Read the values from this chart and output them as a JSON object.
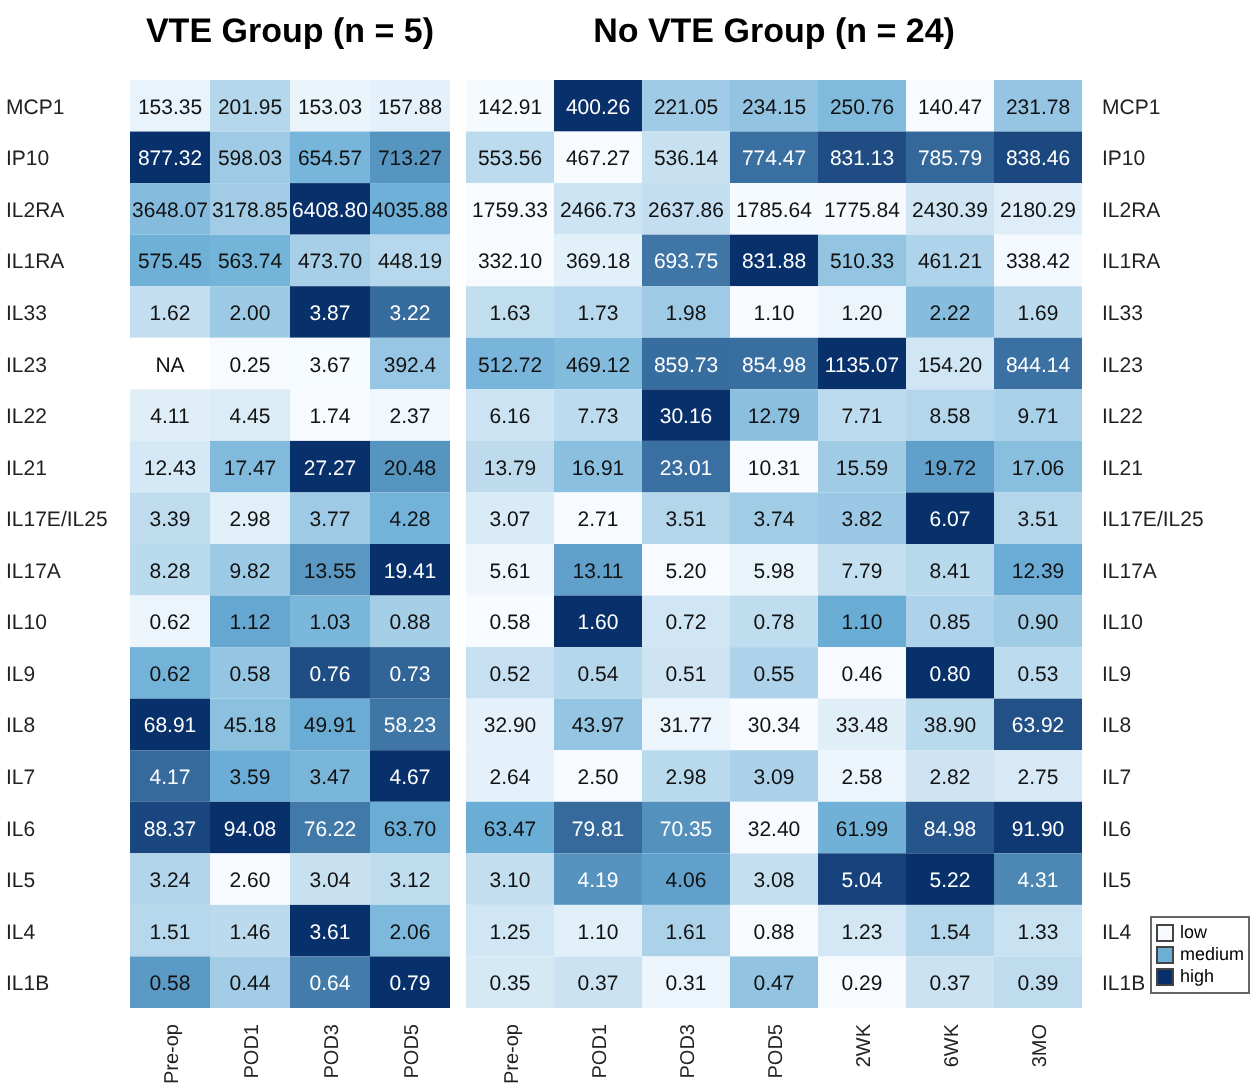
{
  "chart_data": [
    {
      "type": "heatmap",
      "title": "VTE Group (n = 5)",
      "categories": [
        "Pre-op",
        "POD1",
        "POD3",
        "POD5"
      ],
      "y_categories": [
        "MCP1",
        "IP10",
        "IL2RA",
        "IL1RA",
        "IL33",
        "IL23",
        "IL22",
        "IL21",
        "IL17E/IL25",
        "IL17A",
        "IL10",
        "IL9",
        "IL8",
        "IL7",
        "IL6",
        "IL5",
        "IL4",
        "IL1B"
      ],
      "cells": [
        [
          153.35,
          201.95,
          153.03,
          157.88
        ],
        [
          877.32,
          598.03,
          654.57,
          713.27
        ],
        [
          3648.07,
          3178.85,
          6408.8,
          4035.88
        ],
        [
          575.45,
          563.74,
          473.7,
          448.19
        ],
        [
          1.62,
          2.0,
          3.87,
          3.22
        ],
        [
          null,
          0.25,
          3.67,
          392.4
        ],
        [
          4.11,
          4.45,
          1.74,
          2.37
        ],
        [
          12.43,
          17.47,
          27.27,
          20.48
        ],
        [
          3.39,
          2.98,
          3.77,
          4.28
        ],
        [
          8.28,
          9.82,
          13.55,
          19.41
        ],
        [
          0.62,
          1.12,
          1.03,
          0.88
        ],
        [
          0.62,
          0.58,
          0.76,
          0.73
        ],
        [
          68.91,
          45.18,
          49.91,
          58.23
        ],
        [
          4.17,
          3.59,
          3.47,
          4.67
        ],
        [
          88.37,
          94.08,
          76.22,
          63.7
        ],
        [
          3.24,
          2.6,
          3.04,
          3.12
        ],
        [
          1.51,
          1.46,
          3.61,
          2.06
        ],
        [
          0.58,
          0.44,
          0.64,
          0.79
        ]
      ],
      "cell_labels": [
        [
          "153.35",
          "201.95",
          "153.03",
          "157.88"
        ],
        [
          "877.32",
          "598.03",
          "654.57",
          "713.27"
        ],
        [
          "3648.07",
          "3178.85",
          "6408.80",
          "4035.88"
        ],
        [
          "575.45",
          "563.74",
          "473.70",
          "448.19"
        ],
        [
          "1.62",
          "2.00",
          "3.87",
          "3.22"
        ],
        [
          "NA",
          "0.25",
          "3.67",
          "392.4"
        ],
        [
          "4.11",
          "4.45",
          "1.74",
          "2.37"
        ],
        [
          "12.43",
          "17.47",
          "27.27",
          "20.48"
        ],
        [
          "3.39",
          "2.98",
          "3.77",
          "4.28"
        ],
        [
          "8.28",
          "9.82",
          "13.55",
          "19.41"
        ],
        [
          "0.62",
          "1.12",
          "1.03",
          "0.88"
        ],
        [
          "0.62",
          "0.58",
          "0.76",
          "0.73"
        ],
        [
          "68.91",
          "45.18",
          "49.91",
          "58.23"
        ],
        [
          "4.17",
          "3.59",
          "3.47",
          "4.67"
        ],
        [
          "88.37",
          "94.08",
          "76.22",
          "63.70"
        ],
        [
          "3.24",
          "2.60",
          "3.04",
          "3.12"
        ],
        [
          "1.51",
          "1.46",
          "3.61",
          "2.06"
        ],
        [
          "0.58",
          "0.44",
          "0.64",
          "0.79"
        ]
      ]
    },
    {
      "type": "heatmap",
      "title": "No VTE Group (n = 24)",
      "categories": [
        "Pre-op",
        "POD1",
        "POD3",
        "POD5",
        "2WK",
        "6WK",
        "3MO"
      ],
      "y_categories": [
        "MCP1",
        "IP10",
        "IL2RA",
        "IL1RA",
        "IL33",
        "IL23",
        "IL22",
        "IL21",
        "IL17E/IL25",
        "IL17A",
        "IL10",
        "IL9",
        "IL8",
        "IL7",
        "IL6",
        "IL5",
        "IL4",
        "IL1B"
      ],
      "cells": [
        [
          142.91,
          400.26,
          221.05,
          234.15,
          250.76,
          140.47,
          231.78
        ],
        [
          553.56,
          467.27,
          536.14,
          774.47,
          831.13,
          785.79,
          838.46
        ],
        [
          1759.33,
          2466.73,
          2637.86,
          1785.64,
          1775.84,
          2430.39,
          2180.29
        ],
        [
          332.1,
          369.18,
          693.75,
          831.88,
          510.33,
          461.21,
          338.42
        ],
        [
          1.63,
          1.73,
          1.98,
          1.1,
          1.2,
          2.22,
          1.69
        ],
        [
          512.72,
          469.12,
          859.73,
          854.98,
          1135.07,
          154.2,
          844.14
        ],
        [
          6.16,
          7.73,
          30.16,
          12.79,
          7.71,
          8.58,
          9.71
        ],
        [
          13.79,
          16.91,
          23.01,
          10.31,
          15.59,
          19.72,
          17.06
        ],
        [
          3.07,
          2.71,
          3.51,
          3.74,
          3.82,
          6.07,
          3.51
        ],
        [
          5.61,
          13.11,
          5.2,
          5.98,
          7.79,
          8.41,
          12.39
        ],
        [
          0.58,
          1.6,
          0.72,
          0.78,
          1.1,
          0.85,
          0.9
        ],
        [
          0.52,
          0.54,
          0.51,
          0.55,
          0.46,
          0.8,
          0.53
        ],
        [
          32.9,
          43.97,
          31.77,
          30.34,
          33.48,
          38.9,
          63.92
        ],
        [
          2.64,
          2.5,
          2.98,
          3.09,
          2.58,
          2.82,
          2.75
        ],
        [
          63.47,
          79.81,
          70.35,
          32.4,
          61.99,
          84.98,
          91.9
        ],
        [
          3.1,
          4.19,
          4.06,
          3.08,
          5.04,
          5.22,
          4.31
        ],
        [
          1.25,
          1.1,
          1.61,
          0.88,
          1.23,
          1.54,
          1.33
        ],
        [
          0.35,
          0.37,
          0.31,
          0.47,
          0.29,
          0.37,
          0.39
        ]
      ],
      "cell_labels": [
        [
          "142.91",
          "400.26",
          "221.05",
          "234.15",
          "250.76",
          "140.47",
          "231.78"
        ],
        [
          "553.56",
          "467.27",
          "536.14",
          "774.47",
          "831.13",
          "785.79",
          "838.46"
        ],
        [
          "1759.33",
          "2466.73",
          "2637.86",
          "1785.64",
          "1775.84",
          "2430.39",
          "2180.29"
        ],
        [
          "332.10",
          "369.18",
          "693.75",
          "831.88",
          "510.33",
          "461.21",
          "338.42"
        ],
        [
          "1.63",
          "1.73",
          "1.98",
          "1.10",
          "1.20",
          "2.22",
          "1.69"
        ],
        [
          "512.72",
          "469.12",
          "859.73",
          "854.98",
          "1135.07",
          "154.20",
          "844.14"
        ],
        [
          "6.16",
          "7.73",
          "30.16",
          "12.79",
          "7.71",
          "8.58",
          "9.71"
        ],
        [
          "13.79",
          "16.91",
          "23.01",
          "10.31",
          "15.59",
          "19.72",
          "17.06"
        ],
        [
          "3.07",
          "2.71",
          "3.51",
          "3.74",
          "3.82",
          "6.07",
          "3.51"
        ],
        [
          "5.61",
          "13.11",
          "5.20",
          "5.98",
          "7.79",
          "8.41",
          "12.39"
        ],
        [
          "0.58",
          "1.60",
          "0.72",
          "0.78",
          "1.10",
          "0.85",
          "0.90"
        ],
        [
          "0.52",
          "0.54",
          "0.51",
          "0.55",
          "0.46",
          "0.80",
          "0.53"
        ],
        [
          "32.90",
          "43.97",
          "31.77",
          "30.34",
          "33.48",
          "38.90",
          "63.92"
        ],
        [
          "2.64",
          "2.50",
          "2.98",
          "3.09",
          "2.58",
          "2.82",
          "2.75"
        ],
        [
          "63.47",
          "79.81",
          "70.35",
          "32.40",
          "61.99",
          "84.98",
          "91.90"
        ],
        [
          "3.10",
          "4.19",
          "4.06",
          "3.08",
          "5.04",
          "5.22",
          "4.31"
        ],
        [
          "1.25",
          "1.10",
          "1.61",
          "0.88",
          "1.23",
          "1.54",
          "1.33"
        ],
        [
          "0.35",
          "0.37",
          "0.31",
          "0.47",
          "0.29",
          "0.37",
          "0.39"
        ]
      ],
      "annotations": [
        "low",
        "medium",
        "high"
      ]
    }
  ]
}
